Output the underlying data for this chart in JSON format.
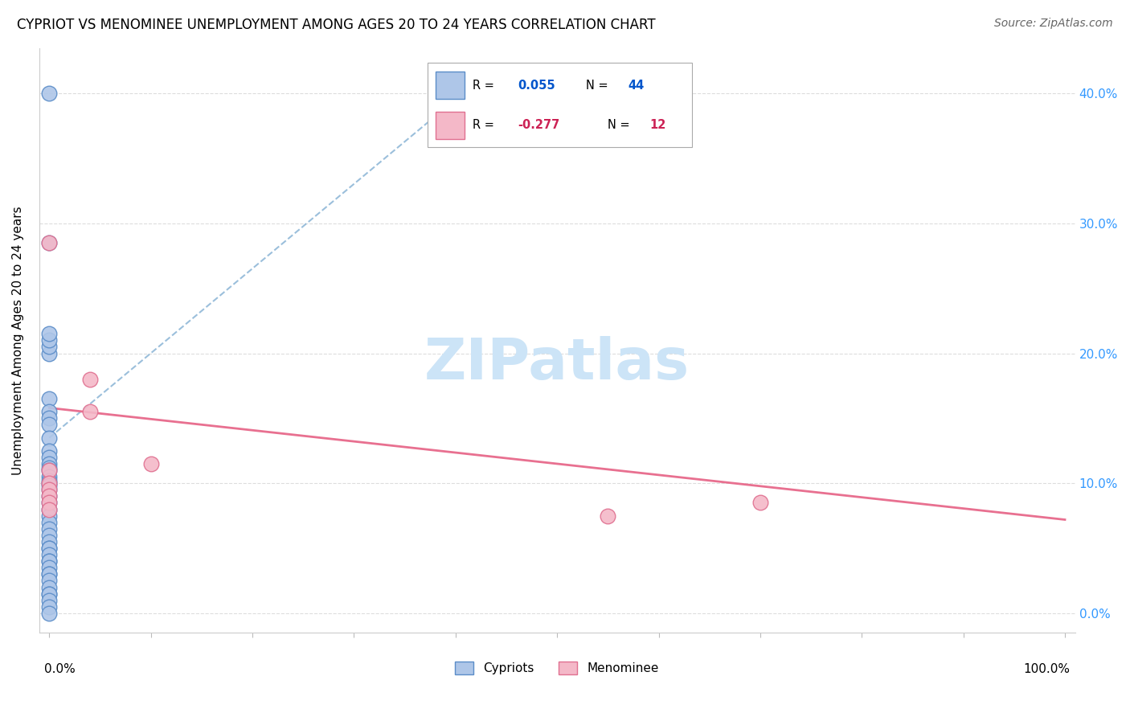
{
  "title": "CYPRIOT VS MENOMINEE UNEMPLOYMENT AMONG AGES 20 TO 24 YEARS CORRELATION CHART",
  "source": "Source: ZipAtlas.com",
  "ylabel": "Unemployment Among Ages 20 to 24 years",
  "cypriot_color": "#aec6e8",
  "cypriot_edge_color": "#5b8dc8",
  "menominee_color": "#f4b8c8",
  "menominee_edge_color": "#e07090",
  "cypriot_line_color": "#7aaad0",
  "menominee_line_color": "#e87090",
  "legend_cypriot_R": "0.055",
  "legend_cypriot_N": "44",
  "legend_menominee_R": "-0.277",
  "legend_menominee_N": "12",
  "cypriot_x": [
    0.0,
    0.0,
    0.0,
    0.0,
    0.0,
    0.0,
    0.0,
    0.0,
    0.0,
    0.0,
    0.0,
    0.0,
    0.0,
    0.0,
    0.0,
    0.0,
    0.0,
    0.0,
    0.0,
    0.0,
    0.0,
    0.0,
    0.0,
    0.0,
    0.0,
    0.0,
    0.0,
    0.0,
    0.0,
    0.0,
    0.0,
    0.0,
    0.0,
    0.0,
    0.0,
    0.0,
    0.0,
    0.0,
    0.0,
    0.0,
    0.0,
    0.0,
    0.0,
    0.0
  ],
  "cypriot_y": [
    0.4,
    0.285,
    0.2,
    0.205,
    0.21,
    0.215,
    0.165,
    0.155,
    0.15,
    0.145,
    0.135,
    0.125,
    0.12,
    0.115,
    0.112,
    0.11,
    0.105,
    0.102,
    0.1,
    0.098,
    0.095,
    0.09,
    0.085,
    0.08,
    0.075,
    0.07,
    0.065,
    0.06,
    0.055,
    0.05,
    0.05,
    0.045,
    0.04,
    0.04,
    0.035,
    0.03,
    0.03,
    0.025,
    0.02,
    0.015,
    0.015,
    0.01,
    0.005,
    0.0
  ],
  "menominee_x": [
    0.0,
    0.04,
    0.04,
    0.1,
    0.55,
    0.7,
    0.0,
    0.0,
    0.0,
    0.0,
    0.0,
    0.0
  ],
  "menominee_y": [
    0.285,
    0.155,
    0.18,
    0.115,
    0.075,
    0.085,
    0.11,
    0.1,
    0.095,
    0.09,
    0.085,
    0.08
  ],
  "cyp_trend_x0": 0.0,
  "cyp_trend_y0": 0.135,
  "cyp_trend_x1": 0.43,
  "cyp_trend_y1": 0.415,
  "men_trend_x0": 0.0,
  "men_trend_y0": 0.158,
  "men_trend_x1": 1.0,
  "men_trend_y1": 0.072,
  "xlim": [
    -0.01,
    1.01
  ],
  "ylim": [
    -0.015,
    0.435
  ],
  "yticks": [
    0.0,
    0.1,
    0.2,
    0.3,
    0.4
  ],
  "right_tick_labels": [
    "0.0%",
    "10.0%",
    "20.0%",
    "30.0%",
    "40.0%"
  ],
  "right_tick_colors": [
    "#3399ff",
    "#3399ff",
    "#3399ff",
    "#3399ff",
    "#3399ff"
  ],
  "xtick_positions": [
    0.0,
    0.1,
    0.2,
    0.3,
    0.4,
    0.5,
    0.6,
    0.7,
    0.8,
    0.9,
    1.0
  ],
  "watermark_text": "ZIPatlas",
  "watermark_color": "#cce4f7",
  "background_color": "#ffffff"
}
